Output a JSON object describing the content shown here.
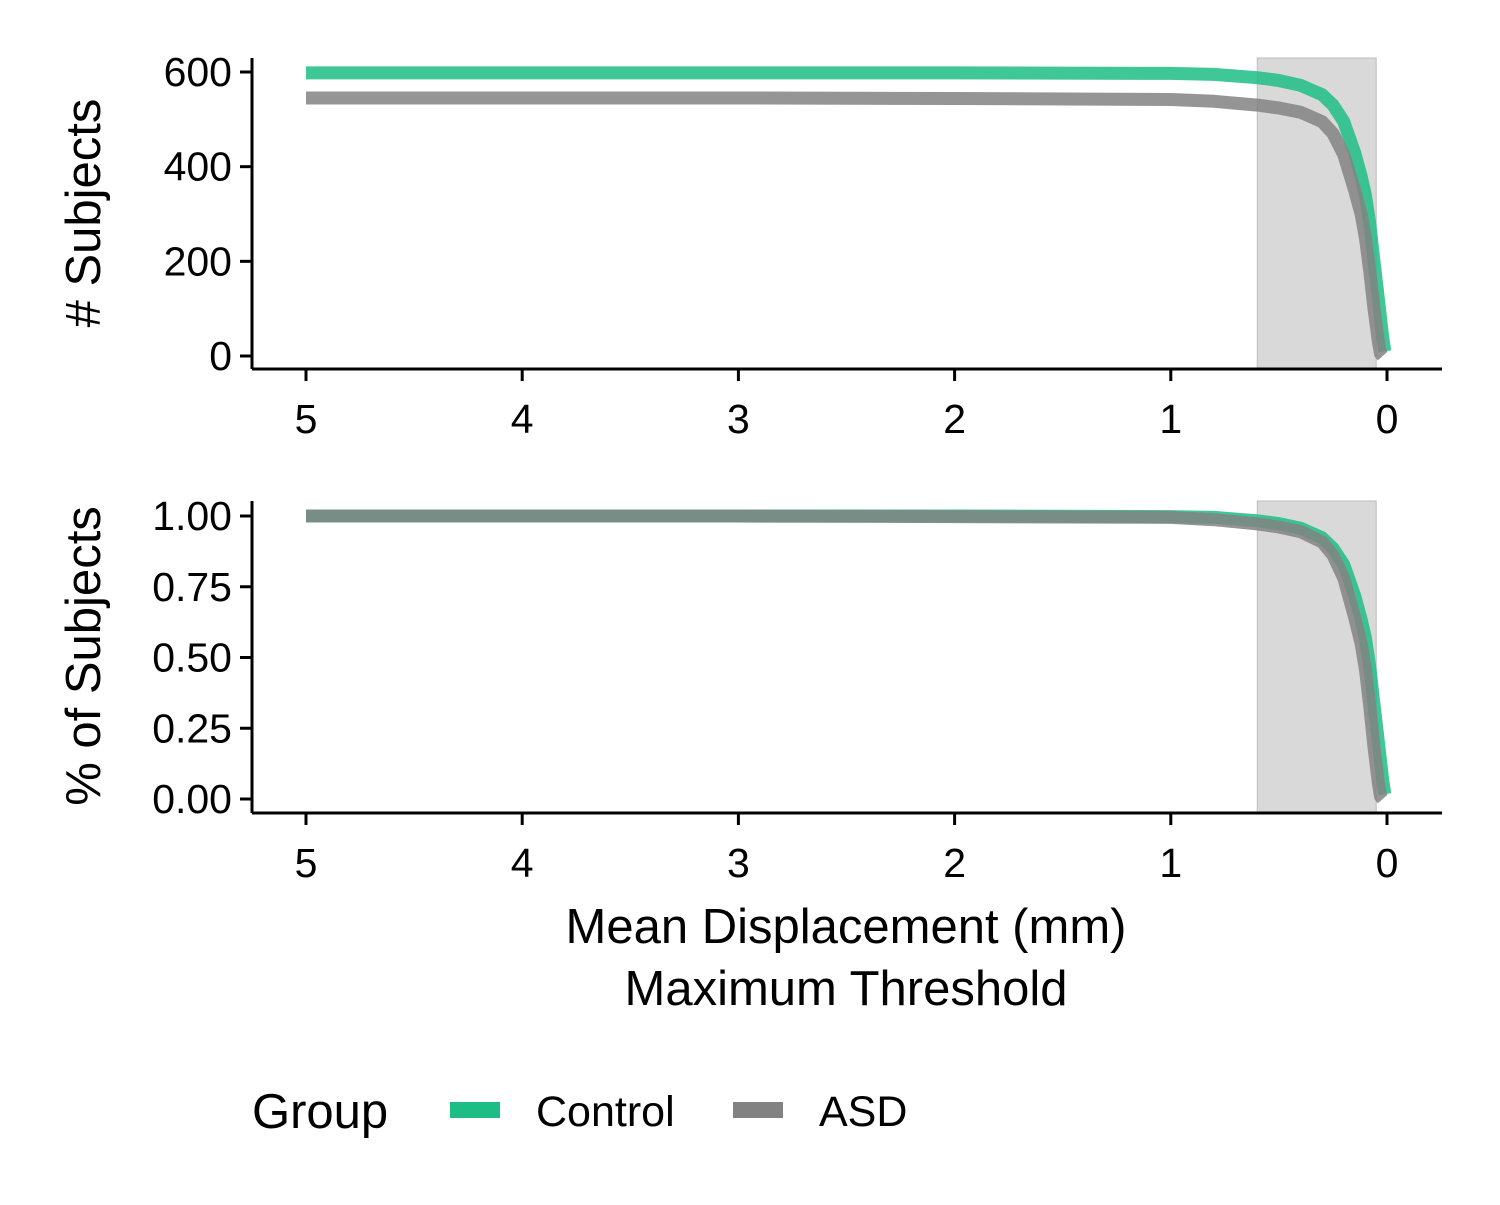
{
  "chart_data": [
    {
      "type": "line",
      "ylabel": "# Subjects",
      "xlabel": "",
      "xlim": [
        5,
        0
      ],
      "x_reversed": true,
      "ylim": [
        0,
        630
      ],
      "xticks": [
        "5",
        "4",
        "3",
        "2",
        "1",
        "0"
      ],
      "yticks": [
        "0",
        "200",
        "400",
        "600"
      ],
      "highlight_band": {
        "x_from": 0.6,
        "x_to": 0.05,
        "color": "#d9d9d9"
      },
      "series": [
        {
          "name": "Control",
          "color": "#1dbd85",
          "x": [
            5,
            4,
            3,
            2,
            1,
            0.8,
            0.6,
            0.5,
            0.4,
            0.3,
            0.25,
            0.2,
            0.15,
            0.12,
            0.1,
            0.08,
            0.06,
            0.04,
            0.02,
            0.01
          ],
          "y": [
            598,
            598,
            598,
            598,
            597,
            595,
            588,
            582,
            572,
            552,
            530,
            495,
            430,
            380,
            340,
            280,
            200,
            120,
            40,
            10
          ]
        },
        {
          "name": "ASD",
          "color": "#828282",
          "x": [
            5,
            4,
            3,
            2,
            1,
            0.8,
            0.6,
            0.5,
            0.4,
            0.3,
            0.25,
            0.2,
            0.15,
            0.12,
            0.1,
            0.08,
            0.06,
            0.04,
            0.03,
            0.02
          ],
          "y": [
            545,
            545,
            545,
            544,
            542,
            538,
            530,
            524,
            515,
            495,
            470,
            425,
            350,
            300,
            250,
            180,
            100,
            30,
            5,
            0
          ]
        }
      ]
    },
    {
      "type": "line",
      "ylabel": "% of Subjects",
      "xlabel": "Mean Displacement (mm)\nMaximum Threshold",
      "xlim": [
        5,
        0
      ],
      "x_reversed": true,
      "ylim": [
        0,
        1.05
      ],
      "xticks": [
        "5",
        "4",
        "3",
        "2",
        "1",
        "0"
      ],
      "yticks": [
        "0.00",
        "0.25",
        "0.50",
        "0.75",
        "1.00"
      ],
      "highlight_band": {
        "x_from": 0.6,
        "x_to": 0.05,
        "color": "#d9d9d9"
      },
      "series": [
        {
          "name": "Control",
          "color": "#1dbd85",
          "x": [
            5,
            4,
            3,
            2,
            1,
            0.8,
            0.6,
            0.5,
            0.4,
            0.3,
            0.25,
            0.2,
            0.15,
            0.12,
            0.1,
            0.08,
            0.06,
            0.04,
            0.02,
            0.01
          ],
          "y": [
            1.0,
            1.0,
            1.0,
            1.0,
            0.998,
            0.995,
            0.983,
            0.973,
            0.957,
            0.923,
            0.886,
            0.828,
            0.719,
            0.635,
            0.569,
            0.468,
            0.334,
            0.2,
            0.067,
            0.017
          ]
        },
        {
          "name": "ASD",
          "color": "#828282",
          "x": [
            5,
            4,
            3,
            2,
            1,
            0.8,
            0.6,
            0.5,
            0.4,
            0.3,
            0.25,
            0.2,
            0.15,
            0.12,
            0.1,
            0.08,
            0.06,
            0.04,
            0.03,
            0.02
          ],
          "y": [
            1.0,
            1.0,
            1.0,
            0.998,
            0.995,
            0.987,
            0.972,
            0.961,
            0.945,
            0.908,
            0.862,
            0.78,
            0.642,
            0.55,
            0.459,
            0.33,
            0.183,
            0.055,
            0.009,
            0
          ]
        }
      ]
    }
  ],
  "legend": {
    "title": "Group",
    "items": [
      {
        "label": "Control",
        "color": "#1dbd85"
      },
      {
        "label": "ASD",
        "color": "#828282"
      }
    ]
  }
}
